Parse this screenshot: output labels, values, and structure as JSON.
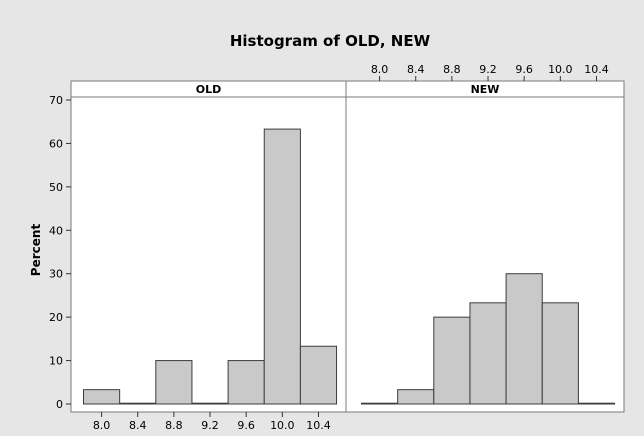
{
  "chart_data": {
    "type": "bar",
    "title": "Histogram of OLD, NEW",
    "ylabel": "Percent",
    "xlabel": "",
    "ylim": [
      0,
      70
    ],
    "yticks": [
      0,
      10,
      20,
      30,
      40,
      50,
      60,
      70
    ],
    "xtick_labels": [
      "8.0",
      "8.4",
      "8.8",
      "9.2",
      "9.6",
      "10.0",
      "10.4"
    ],
    "bin_width": 0.4,
    "panels": [
      {
        "name": "OLD",
        "x_axis_position": "bottom",
        "bin_centers": [
          7.8,
          8.2,
          8.6,
          9.0,
          9.4,
          9.8,
          10.2
        ],
        "values": [
          3.3,
          0,
          10,
          0,
          10,
          63.3,
          13.3
        ]
      },
      {
        "name": "NEW",
        "x_axis_position": "top",
        "bin_centers": [
          7.8,
          8.2,
          8.6,
          9.0,
          9.4,
          9.8,
          10.2
        ],
        "values": [
          0,
          3.3,
          20,
          23.3,
          30,
          23.3,
          0
        ]
      }
    ],
    "colors": {
      "background": "#e6e6e6",
      "panel": "#ffffff",
      "bar_fill": "#c9c9c9",
      "bar_stroke": "#3c3c3c",
      "strip": "#ffffff"
    }
  }
}
